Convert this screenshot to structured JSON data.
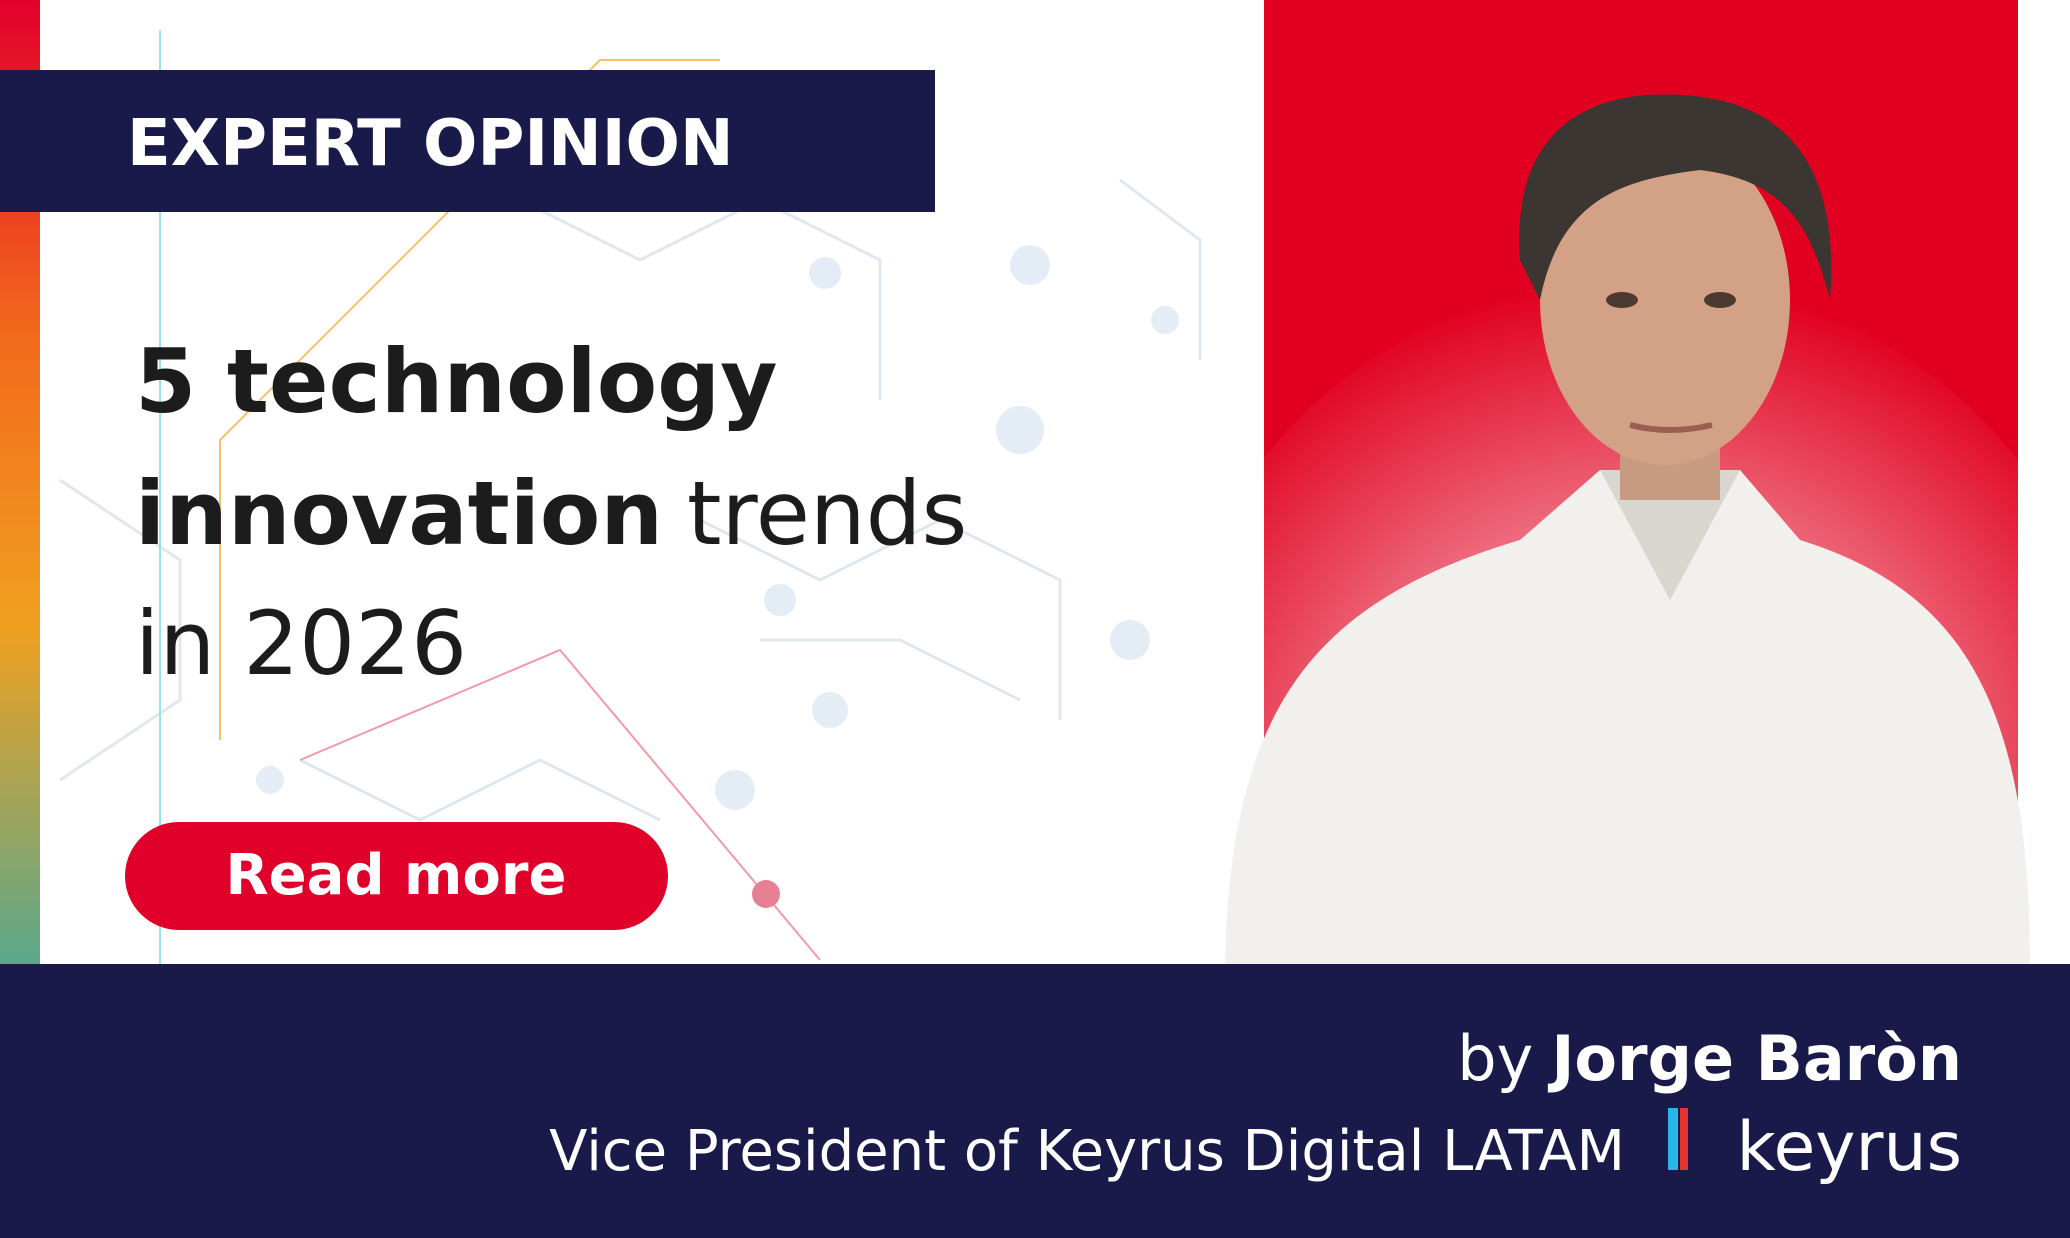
{
  "badge": "EXPERT OPINION",
  "headline": {
    "line1": "5 technology",
    "line2_bold": "innovation",
    "line2_regular": "trends",
    "line3": "in 2026"
  },
  "button": "Read more",
  "byline": {
    "prefix": "by",
    "name": "Jorge Baròn",
    "role": "Vice President of Keyrus Digital LATAM"
  },
  "logo": "keyrus"
}
